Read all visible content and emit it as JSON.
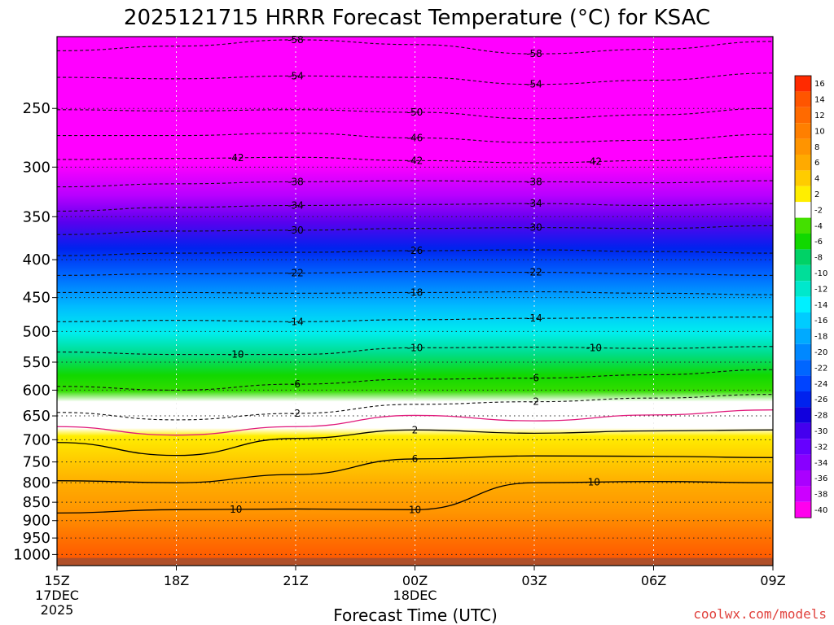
{
  "title": "2025121715 HRRR Forecast Temperature (°C) for KSAC",
  "credit": "coolwx.com/models",
  "colors": {
    "credit": "#e0413c"
  },
  "chart_data": {
    "type": "heatmap",
    "xlabel": "Forecast Time (UTC)",
    "ylabel": "",
    "x_hours": [
      15,
      18,
      21,
      24,
      27,
      30,
      33
    ],
    "x_ticks": [
      {
        "label": "15Z",
        "sub": [
          "17DEC",
          "2025"
        ]
      },
      {
        "label": "18Z",
        "sub": []
      },
      {
        "label": "21Z",
        "sub": []
      },
      {
        "label": "00Z",
        "sub": [
          "18DEC"
        ]
      },
      {
        "label": "03Z",
        "sub": []
      },
      {
        "label": "06Z",
        "sub": []
      },
      {
        "label": "09Z",
        "sub": []
      }
    ],
    "y_range_hpa": [
      200,
      1035
    ],
    "y_scale": "log",
    "y_ticks": [
      250,
      300,
      350,
      400,
      450,
      500,
      550,
      600,
      650,
      700,
      750,
      800,
      850,
      900,
      950,
      1000
    ],
    "colorbar_labels": [
      "16",
      "14",
      "12",
      "10",
      "8",
      "6",
      "4",
      "2",
      "-2",
      "-4",
      "-6",
      "-8",
      "-10",
      "-12",
      "-14",
      "-16",
      "-18",
      "-20",
      "-22",
      "-24",
      "-26",
      "-28",
      "-30",
      "-32",
      "-34",
      "-36",
      "-38",
      "-40"
    ],
    "colorbar_colors": [
      "#ff2a00",
      "#ff5500",
      "#ff6a00",
      "#ff7f00",
      "#ff9400",
      "#ffaa00",
      "#ffcc00",
      "#ffee00",
      "#ffffff",
      "#44e000",
      "#11d800",
      "#00d266",
      "#00de99",
      "#00e8cc",
      "#00f0ff",
      "#00ccff",
      "#00aaff",
      "#0088ff",
      "#0066ff",
      "#0044ff",
      "#0022ee",
      "#1100dd",
      "#4400ee",
      "#6600ff",
      "#8800ff",
      "#aa00ff",
      "#cc00ff",
      "#ff00ee"
    ],
    "contours": [
      {
        "value": -58,
        "style": "dashed",
        "p": [
          209,
          206,
          202,
          205,
          211,
          208,
          203
        ],
        "labels": [
          "-58",
          "-58"
        ]
      },
      {
        "value": -54,
        "style": "dashed",
        "p": [
          227,
          228,
          226,
          227,
          232,
          229,
          224
        ],
        "labels": [
          "-54",
          "-54"
        ]
      },
      {
        "value": -50,
        "style": "dashed",
        "p": [
          251,
          252,
          251,
          253,
          258,
          255,
          250
        ],
        "labels": [
          "-50"
        ]
      },
      {
        "value": -46,
        "style": "dashed",
        "p": [
          272,
          272,
          270,
          274,
          278,
          276,
          271
        ],
        "labels": [
          "-46"
        ]
      },
      {
        "value": -42,
        "style": "dashed",
        "p": [
          293,
          292,
          291,
          294,
          296,
          294,
          290
        ],
        "labels": [
          "-42",
          "-42",
          "-42"
        ]
      },
      {
        "value": -38,
        "style": "dashed",
        "p": [
          319,
          316,
          314,
          313,
          314,
          315,
          313
        ],
        "labels": [
          "-38",
          "-38"
        ]
      },
      {
        "value": -34,
        "style": "dashed",
        "p": [
          344,
          340,
          338,
          337,
          336,
          338,
          336
        ],
        "labels": [
          "-34",
          "-34"
        ]
      },
      {
        "value": -30,
        "style": "dashed",
        "p": [
          370,
          366,
          365,
          363,
          362,
          363,
          360
        ],
        "labels": [
          "-30",
          "-30"
        ]
      },
      {
        "value": -26,
        "style": "dashed",
        "p": [
          395,
          392,
          391,
          389,
          388,
          390,
          392
        ],
        "labels": [
          "-26"
        ]
      },
      {
        "value": -22,
        "style": "dashed",
        "p": [
          420,
          418,
          417,
          415,
          416,
          418,
          420
        ],
        "labels": [
          "-22",
          "-22"
        ]
      },
      {
        "value": -18,
        "style": "dashed",
        "p": [
          443,
          443,
          444,
          443,
          442,
          444,
          446
        ],
        "labels": [
          "-18"
        ]
      },
      {
        "value": -14,
        "style": "dashed",
        "p": [
          485,
          483,
          485,
          482,
          480,
          479,
          478
        ],
        "labels": [
          "-14",
          "-14"
        ]
      },
      {
        "value": -10,
        "style": "dashed",
        "p": [
          533,
          537,
          537,
          526,
          525,
          527,
          524
        ],
        "labels": [
          "-10",
          "-10",
          "-10"
        ]
      },
      {
        "value": -6,
        "style": "dashed",
        "p": [
          593,
          600,
          589,
          580,
          578,
          572,
          563
        ],
        "labels": [
          "-6",
          "-6"
        ]
      },
      {
        "value": -2,
        "style": "dashed",
        "p": [
          643,
          658,
          645,
          627,
          622,
          615,
          608
        ],
        "labels": [
          "-2",
          "-2"
        ]
      },
      {
        "value": 0,
        "style": "magenta",
        "p": [
          672,
          690,
          672,
          649,
          660,
          648,
          638
        ],
        "labels": []
      },
      {
        "value": 2,
        "style": "solid",
        "p": [
          706,
          735,
          697,
          679,
          686,
          681,
          679
        ],
        "labels": [
          "2"
        ]
      },
      {
        "value": 6,
        "style": "solid",
        "p": [
          795,
          800,
          780,
          743,
          736,
          737,
          740
        ],
        "labels": [
          "6"
        ]
      },
      {
        "value": 10,
        "style": "solid",
        "p": [
          879,
          870,
          868,
          870,
          800,
          797,
          800
        ],
        "labels": [
          "10",
          "10",
          "10"
        ]
      }
    ]
  }
}
